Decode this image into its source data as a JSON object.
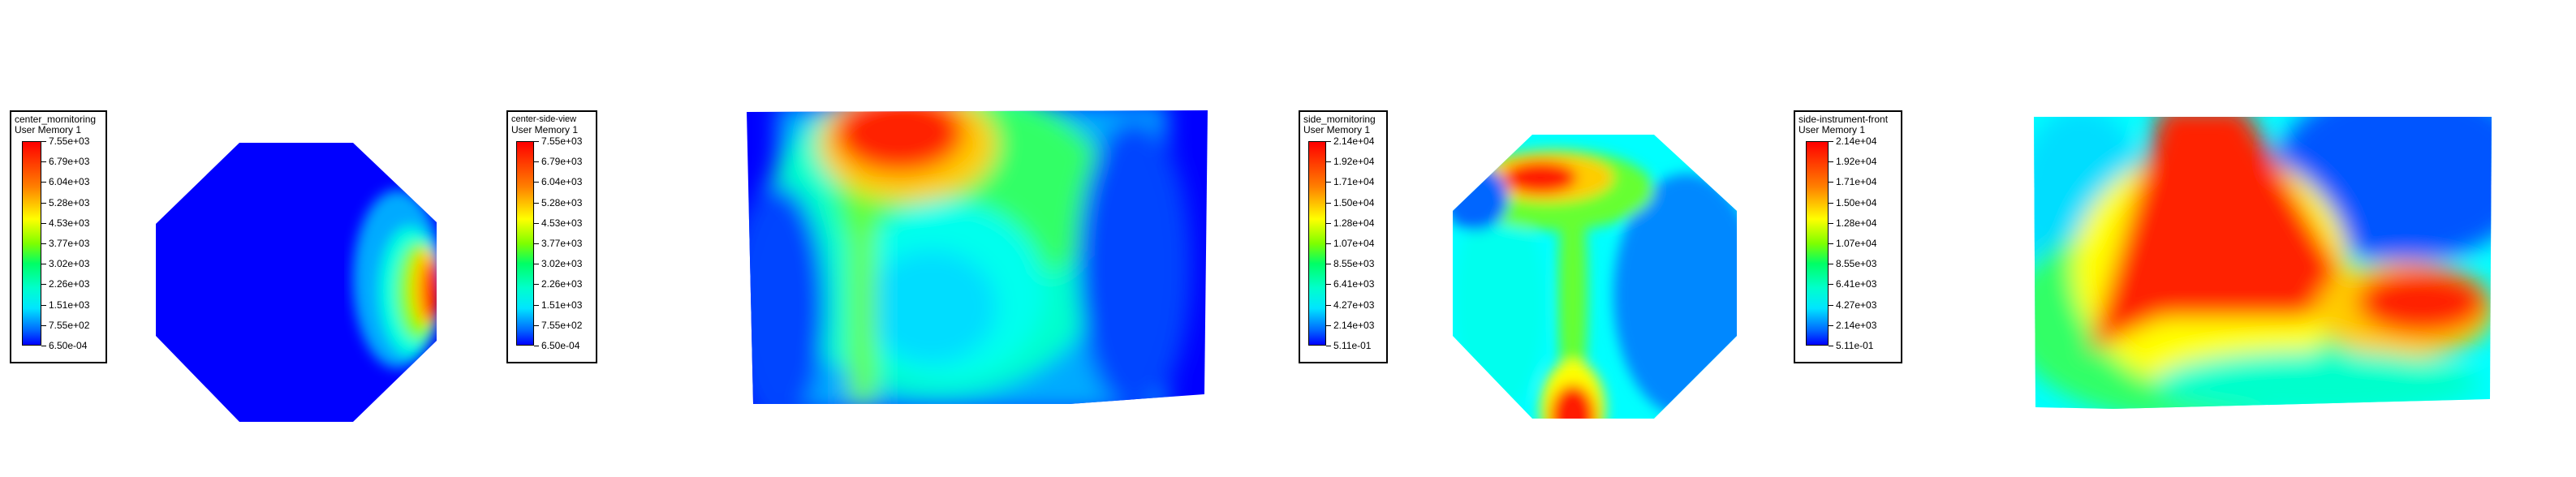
{
  "colors": {
    "blue": "#0000ff",
    "cyan": "#00ffff",
    "green": "#00ff40",
    "yellow": "#ffff00",
    "red": "#ff0000"
  },
  "legends": [
    {
      "title": "center_mornitoring",
      "subtitle": "User Memory 1",
      "labels": [
        "7.55e+03",
        "6.79e+03",
        "6.04e+03",
        "5.28e+03",
        "4.53e+03",
        "3.77e+03",
        "3.02e+03",
        "2.26e+03",
        "1.51e+03",
        "7.55e+02",
        "6.50e-04"
      ]
    },
    {
      "title": "center-side-view",
      "subtitle": "User Memory 1",
      "labels": [
        "7.55e+03",
        "6.79e+03",
        "6.04e+03",
        "5.28e+03",
        "4.53e+03",
        "3.77e+03",
        "3.02e+03",
        "2.26e+03",
        "1.51e+03",
        "7.55e+02",
        "6.50e-04"
      ]
    },
    {
      "title": "side_mornitoring",
      "subtitle": "User Memory 1",
      "labels": [
        "2.14e+04",
        "1.92e+04",
        "1.71e+04",
        "1.50e+04",
        "1.28e+04",
        "1.07e+04",
        "8.55e+03",
        "6.41e+03",
        "4.27e+03",
        "2.14e+03",
        "5.11e-01"
      ]
    },
    {
      "title": "side-instrument-front",
      "subtitle": "User Memory 1",
      "labels": [
        "2.14e+04",
        "1.92e+04",
        "1.71e+04",
        "1.50e+04",
        "1.28e+04",
        "1.07e+04",
        "8.55e+03",
        "6.41e+03",
        "4.27e+03",
        "2.14e+03",
        "5.11e-01"
      ]
    }
  ]
}
